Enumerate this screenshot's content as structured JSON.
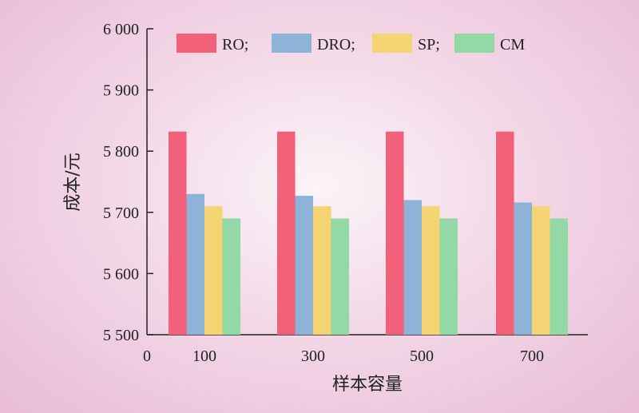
{
  "chart_data": {
    "type": "bar",
    "xlabel": "样本容量",
    "ylabel": "成本/元",
    "x_origin_label": "0",
    "categories": [
      "100",
      "300",
      "500",
      "700"
    ],
    "ylim": [
      5500,
      6000
    ],
    "yticks": [
      5500,
      5600,
      5700,
      5800,
      5900,
      6000
    ],
    "ytick_labels": [
      "5 500",
      "5 600",
      "5 700",
      "5 800",
      "5 900",
      "6 000"
    ],
    "series": [
      {
        "name": "RO;",
        "color": "#f26079",
        "values": [
          5832,
          5832,
          5832,
          5832
        ]
      },
      {
        "name": "DRO;",
        "color": "#8eb2d8",
        "values": [
          5730,
          5727,
          5720,
          5716
        ]
      },
      {
        "name": "SP;",
        "color": "#f4d473",
        "values": [
          5710,
          5710,
          5710,
          5710
        ]
      },
      {
        "name": "CM",
        "color": "#92d9a6",
        "values": [
          5690,
          5690,
          5690,
          5690
        ]
      }
    ],
    "legend_position": "top",
    "grid": false
  }
}
